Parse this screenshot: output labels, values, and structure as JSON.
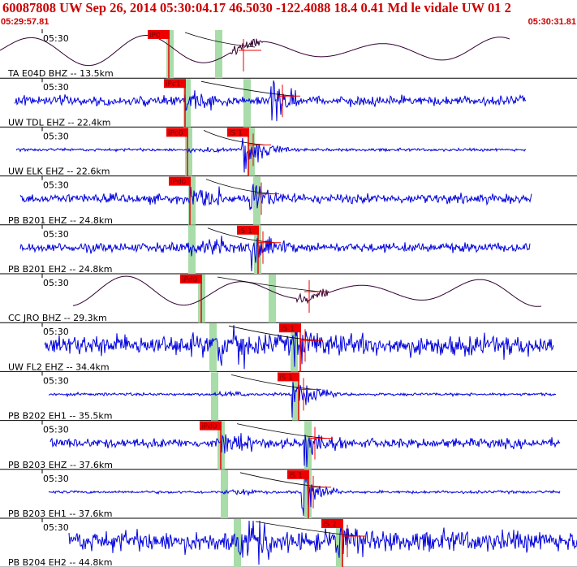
{
  "header": {
    "title": "60087808 UW Sep 26, 2014 05:30:04.17    46.5030 -122.4088 18.4 0.41 Md le vidale UW 01   2",
    "start_time": "05:29:57.81",
    "end_time": "05:30:31.81"
  },
  "colors": {
    "header": "#cc0000",
    "trace_blue": "#0000dd",
    "trace_dark": "#330033",
    "pick": "#ee0000",
    "window": "#a8dca8"
  },
  "chart_data": {
    "type": "line",
    "title": "60087808 UW Sep 26, 2014 05:30:04.17    46.5030 -122.4088 18.4 0.41 Md le vidale UW 01   2",
    "x_range": [
      "05:29:57.81",
      "05:30:31.81"
    ],
    "tick_label": "05:30",
    "traces": [
      {
        "label": "TA E04D BHZ -- 13.5km",
        "style": "longperiod",
        "p_pick": "iP0",
        "s_pick": ""
      },
      {
        "label": "UW TDL EHZ -- 22.4km",
        "style": "noise",
        "p_pick": "iPc1",
        "s_pick": ""
      },
      {
        "label": "UW ELK EHZ -- 22.6km",
        "style": "quiet",
        "p_pick": "iPc0",
        "s_pick": "iS 1"
      },
      {
        "label": "PB B201 EHZ -- 24.8km",
        "style": "noise",
        "p_pick": "iPd0",
        "s_pick": ""
      },
      {
        "label": "PB B201 EH2 -- 24.8km",
        "style": "noise",
        "p_pick": "",
        "s_pick": "iS 1"
      },
      {
        "label": "CC JRO BHZ -- 29.3km",
        "style": "longperiod",
        "p_pick": "iPd0",
        "s_pick": ""
      },
      {
        "label": "UW FL2 EHZ -- 34.4km",
        "style": "loud",
        "p_pick": "",
        "s_pick": "iS 1"
      },
      {
        "label": "PB B202 EH1 -- 35.5km",
        "style": "quiet",
        "p_pick": "",
        "s_pick": "iS 1"
      },
      {
        "label": "PB B203 EHZ -- 37.6km",
        "style": "noise",
        "p_pick": "iPd0",
        "s_pick": ""
      },
      {
        "label": "PB B203 EH1 -- 37.6km",
        "style": "quiet",
        "p_pick": "",
        "s_pick": "iS 1"
      },
      {
        "label": "PB B204 EH2 -- 44.8km",
        "style": "loud",
        "p_pick": "",
        "s_pick": "iS 2"
      }
    ]
  }
}
